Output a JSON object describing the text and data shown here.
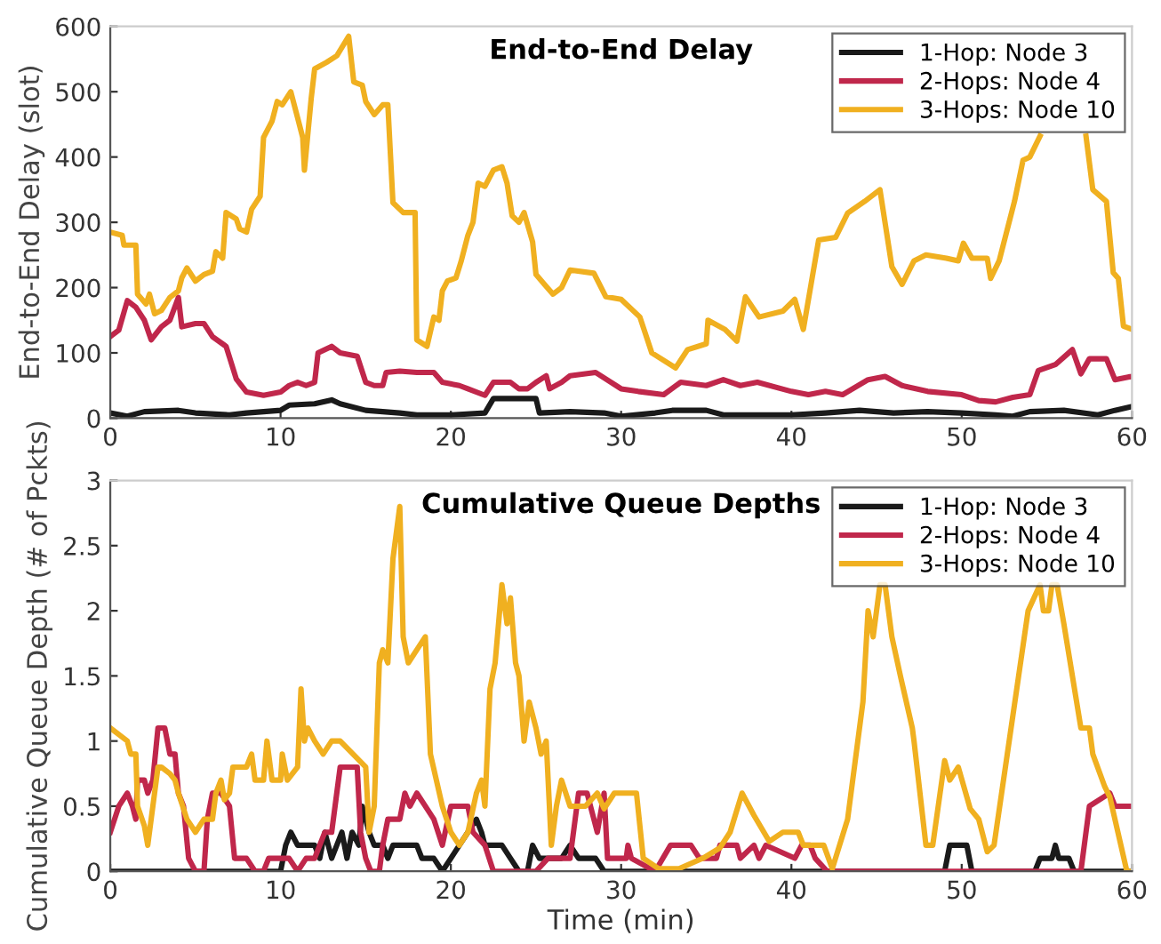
{
  "chart_data": [
    {
      "type": "line",
      "title": "End-to-End Delay",
      "ylabel": "End-to-End Delay (slot)",
      "xlim": [
        0,
        60
      ],
      "ylim": [
        0,
        600
      ],
      "xticks": [
        0,
        10,
        20,
        30,
        40,
        50,
        60
      ],
      "yticks": [
        0,
        100,
        200,
        300,
        400,
        500,
        600
      ],
      "grid": false,
      "legend": "top right",
      "line_style": "solid",
      "marker": "none",
      "series": [
        {
          "name": "1-Hop: Node 3",
          "color": "#1a1a1a",
          "x": [
            0,
            1,
            2,
            4,
            5,
            7,
            8,
            10,
            10.5,
            12,
            13,
            13.5,
            15,
            17,
            18,
            20,
            22,
            22.5,
            25,
            25.2,
            27,
            29,
            30,
            32,
            33,
            35,
            36,
            40,
            42,
            44,
            46,
            48,
            50,
            52,
            53,
            54,
            56,
            58,
            59,
            60
          ],
          "values": [
            8,
            3,
            10,
            12,
            8,
            5,
            8,
            12,
            20,
            22,
            28,
            22,
            12,
            8,
            5,
            5,
            8,
            30,
            30,
            8,
            10,
            8,
            3,
            8,
            12,
            12,
            5,
            5,
            8,
            12,
            8,
            10,
            8,
            5,
            3,
            10,
            12,
            5,
            12,
            18
          ]
        },
        {
          "name": "2-Hops: Node 4",
          "color": "#c0274b",
          "x": [
            0,
            0.5,
            1,
            1.5,
            2,
            2.4,
            3,
            3.5,
            4,
            4.2,
            5,
            5.5,
            6,
            6.8,
            7.4,
            8,
            9,
            10,
            10.5,
            11,
            11.5,
            12,
            12.2,
            13,
            13.5,
            14.5,
            15,
            15.5,
            16,
            16.2,
            17,
            18,
            19,
            19.5,
            20.5,
            21,
            22,
            22.5,
            23.5,
            24,
            24.5,
            25,
            25.6,
            25.8,
            26.5,
            27,
            28.5,
            30,
            31,
            32.5,
            33.5,
            35,
            36,
            37,
            38,
            40,
            41,
            42,
            43,
            44.5,
            45.5,
            46.5,
            48,
            50,
            51,
            52,
            53,
            54,
            54.5,
            55.5,
            56.5,
            57,
            57.5,
            58.5,
            59,
            60
          ],
          "values": [
            125,
            135,
            180,
            170,
            150,
            120,
            140,
            150,
            185,
            140,
            145,
            145,
            125,
            110,
            60,
            40,
            35,
            40,
            50,
            55,
            50,
            55,
            100,
            110,
            100,
            95,
            55,
            50,
            50,
            70,
            72,
            70,
            70,
            55,
            50,
            45,
            35,
            55,
            55,
            45,
            45,
            55,
            65,
            45,
            55,
            65,
            70,
            45,
            41,
            36,
            55,
            50,
            59,
            50,
            55,
            41,
            36,
            41,
            36,
            59,
            64,
            50,
            41,
            36,
            27,
            25,
            32,
            36,
            73,
            82,
            105,
            68,
            91,
            91,
            59,
            64
          ]
        },
        {
          "name": "3-Hops: Node 10",
          "color": "#f0b020",
          "x": [
            0,
            0.7,
            0.8,
            1.5,
            1.6,
            2.1,
            2.3,
            2.6,
            3,
            3.5,
            4,
            4.2,
            4.5,
            5,
            5.5,
            6,
            6.2,
            6.6,
            6.8,
            7.4,
            7.6,
            8,
            8.3,
            8.8,
            9,
            9.5,
            9.8,
            10.1,
            10.6,
            11,
            11.3,
            11.4,
            11.8,
            12,
            12.7,
            13.3,
            14,
            14.3,
            14.8,
            15,
            15.5,
            16,
            16.3,
            16.6,
            17.2,
            17.9,
            18,
            18.6,
            19,
            19.3,
            19.5,
            19.8,
            20.3,
            20.6,
            21,
            21.3,
            21.6,
            22,
            22.5,
            23,
            23.3,
            23.6,
            24,
            24.3,
            24.8,
            25,
            25.5,
            26,
            26.5,
            27,
            28.4,
            29.1,
            30,
            31.1,
            31.8,
            33.2,
            33.9,
            35.0,
            35.1,
            36.1,
            36.8,
            37.3,
            38.1,
            39.5,
            40.2,
            40.7,
            41.6,
            42.6,
            43.3,
            44.3,
            45.2,
            45.9,
            46.5,
            47.2,
            47.9,
            49.1,
            49.8,
            50.1,
            50.6,
            51.5,
            51.7,
            52.2,
            53.1,
            53.6,
            54.0,
            54.6,
            55.5,
            56.5,
            57.3,
            57.7,
            58.5,
            58.9,
            59.2,
            59.5,
            60
          ],
          "values": [
            285,
            280,
            265,
            265,
            190,
            175,
            190,
            160,
            165,
            185,
            195,
            215,
            230,
            210,
            220,
            225,
            255,
            245,
            315,
            305,
            290,
            285,
            320,
            340,
            430,
            455,
            485,
            480,
            500,
            460,
            430,
            380,
            490,
            535,
            545,
            555,
            585,
            515,
            510,
            485,
            465,
            480,
            480,
            330,
            315,
            315,
            120,
            110,
            155,
            150,
            195,
            210,
            215,
            240,
            280,
            300,
            360,
            355,
            380,
            385,
            360,
            310,
            300,
            315,
            270,
            220,
            205,
            190,
            200,
            227,
            222,
            186,
            182,
            155,
            100,
            77,
            105,
            114,
            150,
            136,
            118,
            186,
            155,
            164,
            182,
            136,
            273,
            277,
            314,
            332,
            350,
            232,
            205,
            241,
            250,
            245,
            241,
            268,
            245,
            245,
            214,
            241,
            332,
            395,
            400,
            432,
            null,
            null,
            432,
            350,
            332,
            223,
            214,
            141,
            136
          ]
        }
      ]
    },
    {
      "type": "line",
      "title": "Cumulative Queue Depths",
      "xlabel": "Time (min)",
      "ylabel": "Cumulative Queue Depth (# of Pckts)",
      "xlim": [
        0,
        60
      ],
      "ylim": [
        0,
        3
      ],
      "xticks": [
        0,
        10,
        20,
        30,
        40,
        50,
        60
      ],
      "yticks": [
        0,
        0.5,
        1,
        1.5,
        2,
        2.5,
        3
      ],
      "grid": false,
      "legend": "top right",
      "line_style": "solid",
      "marker": "none",
      "series": [
        {
          "name": "1-Hop: Node 3",
          "color": "#1a1a1a",
          "x": [
            0,
            10,
            10.3,
            10.6,
            11,
            12,
            12.3,
            12.6,
            13,
            13.6,
            13.9,
            14.2,
            14.6,
            14.8,
            15.2,
            15.5,
            16,
            16.3,
            16.6,
            18,
            18.3,
            19,
            19.5,
            20,
            20.5,
            21,
            21.5,
            21.8,
            22,
            23,
            23.5,
            24,
            24.5,
            24.8,
            25.2,
            26,
            26.5,
            27,
            27.5,
            28.5,
            29,
            49,
            49.3,
            50.3,
            50.6,
            54.3,
            54.6,
            55.3,
            55.5,
            55.7,
            56.3,
            56.6,
            60
          ],
          "values": [
            0,
            0,
            0.2,
            0.3,
            0.2,
            0.2,
            0.1,
            0.3,
            0.1,
            0.3,
            0.1,
            0.3,
            0.2,
            0.5,
            0.3,
            0.2,
            0.2,
            0.1,
            0.2,
            0.2,
            0.1,
            0.1,
            0,
            0.1,
            0.2,
            0.3,
            0.4,
            0.3,
            0.2,
            0.2,
            0.1,
            0,
            0,
            0.2,
            0.1,
            0.1,
            0.1,
            0.2,
            0.1,
            0.1,
            0,
            0,
            0.2,
            0.2,
            0,
            0,
            0.1,
            0.1,
            0.2,
            0.1,
            0.1,
            0,
            0
          ]
        },
        {
          "name": "2-Hops: Node 4",
          "color": "#c0274b",
          "x": [
            0,
            0.5,
            1,
            1.3,
            1.5,
            1.6,
            2,
            2.2,
            2.5,
            2.8,
            3.2,
            3.5,
            3.8,
            4,
            4.3,
            4.6,
            5,
            5.5,
            5.7,
            6,
            6.5,
            7,
            7.3,
            8,
            8.5,
            9,
            9.3,
            10,
            10.5,
            11,
            11.5,
            12,
            12.3,
            12.6,
            13,
            13.5,
            14.5,
            14.7,
            15,
            15.3,
            15.8,
            16,
            16.3,
            17,
            17.3,
            17.6,
            18,
            18.5,
            19,
            19.5,
            20,
            21,
            21.3,
            22,
            22.5,
            25,
            25.7,
            26.5,
            27,
            27.5,
            28,
            28.6,
            29,
            29.2,
            30.3,
            30.4,
            30.6,
            32,
            32.9,
            34.1,
            34.6,
            35.6,
            35.8,
            36.8,
            37,
            37.8,
            38.1,
            38.5,
            40.2,
            40.6,
            41.1,
            41.4,
            42.1,
            57,
            57.5,
            58.7,
            59,
            60
          ],
          "values": [
            0.3,
            0.5,
            0.6,
            0.5,
            0.4,
            0.7,
            0.7,
            0.6,
            0.7,
            1.1,
            1.1,
            0.9,
            0.9,
            0.6,
            0.5,
            0.1,
            0,
            0,
            0.4,
            0.6,
            0.6,
            0.5,
            0.1,
            0.1,
            0,
            0,
            0.1,
            0.1,
            0.1,
            0,
            0.1,
            0.1,
            0.2,
            0.3,
            0.3,
            0.8,
            0.8,
            0.3,
            0.1,
            0,
            0,
            0.2,
            0.4,
            0.4,
            0.6,
            0.5,
            0.6,
            0.5,
            0.4,
            0.2,
            0.5,
            0.5,
            0.3,
            0.2,
            0,
            0,
            0.1,
            0.1,
            0.1,
            0.6,
            0.6,
            0.3,
            0.6,
            0.1,
            0.1,
            0.2,
            0.1,
            0,
            0.2,
            0.2,
            0.1,
            0.1,
            0.2,
            0.2,
            0.1,
            0.2,
            0.1,
            0.2,
            0.1,
            0.2,
            0.2,
            0.1,
            0,
            0,
            0.5,
            0.6,
            0.5,
            0.5
          ]
        },
        {
          "name": "3-Hops: Node 10",
          "color": "#f0b020",
          "x": [
            0,
            1,
            1.2,
            1.5,
            1.6,
            2,
            2.2,
            2.5,
            2.8,
            3,
            3.5,
            3.8,
            4,
            4.5,
            5,
            5.5,
            6,
            6.2,
            6.5,
            6.7,
            7,
            7.2,
            8,
            8.3,
            8.5,
            9,
            9.2,
            9.5,
            10,
            10.1,
            10.4,
            11,
            11.2,
            11.4,
            11.6,
            12,
            12.5,
            13,
            13.5,
            15,
            15.2,
            15.5,
            15.8,
            16,
            16.3,
            16.6,
            17,
            17.2,
            17.5,
            18,
            18.5,
            18.8,
            19.5,
            20,
            20.5,
            21,
            21.5,
            21.8,
            22,
            22.3,
            22.6,
            23,
            23.3,
            23.5,
            23.8,
            24,
            24.3,
            24.6,
            25,
            25.3,
            25.6,
            25.9,
            26.2,
            26.5,
            27,
            27.9,
            28.6,
            29,
            29.6,
            30.9,
            31.3,
            32.2,
            33.4,
            34.8,
            35.8,
            36.4,
            37.1,
            37.8,
            38.7,
            39.5,
            40.4,
            40.7,
            41.9,
            42.4,
            43.3,
            44.2,
            44.5,
            44.8,
            45.2,
            45.5,
            45.9,
            46.4,
            47.1,
            47.2,
            47.9,
            48.3,
            49,
            49.3,
            49.8,
            50.5,
            51,
            51.5,
            51.9,
            52.9,
            53.9,
            54.6,
            54.8,
            55.1,
            55.3,
            55.6,
            56,
            57,
            57.5,
            57.7,
            58.4,
            58.7,
            59.7,
            60
          ],
          "values": [
            1.1,
            1.0,
            0.9,
            0.9,
            0.5,
            0.35,
            0.2,
            0.5,
            0.8,
            0.8,
            0.75,
            0.7,
            0.6,
            0.4,
            0.3,
            0.4,
            0.4,
            0.6,
            0.7,
            0.55,
            0.6,
            0.8,
            0.8,
            0.9,
            0.7,
            0.7,
            1.0,
            0.7,
            0.7,
            0.9,
            0.7,
            0.8,
            1.4,
            1.0,
            1.1,
            1.0,
            0.9,
            1.0,
            1.0,
            0.8,
            0.3,
            0.5,
            1.6,
            1.7,
            1.6,
            2.4,
            2.8,
            1.8,
            1.6,
            1.7,
            1.8,
            0.9,
            0.5,
            0.3,
            0.2,
            0.3,
            0.6,
            0.7,
            0.5,
            1.4,
            1.6,
            2.2,
            1.9,
            2.1,
            1.6,
            1.5,
            1.0,
            1.3,
            1.1,
            0.9,
            1.0,
            0.2,
            0.5,
            0.7,
            0.5,
            0.5,
            0.6,
            0.48,
            0.6,
            0.6,
            0.1,
            0.02,
            0.02,
            0.1,
            0.18,
            0.3,
            0.6,
            0.43,
            0.23,
            0.3,
            0.3,
            0.2,
            0.2,
            0.02,
            0.4,
            1.3,
            2.0,
            1.8,
            2.2,
            2.2,
            1.8,
            1.5,
            1.1,
            1.0,
            0.2,
            0.2,
            0.85,
            0.7,
            0.8,
            0.48,
            0.4,
            0.15,
            0.2,
            1.1,
            2.0,
            2.2,
            2.0,
            2.0,
            2.2,
            2.2,
            1.9,
            1.1,
            1.1,
            0.9,
            0.65,
            0.57,
            0.0,
            0.0
          ]
        }
      ]
    }
  ]
}
